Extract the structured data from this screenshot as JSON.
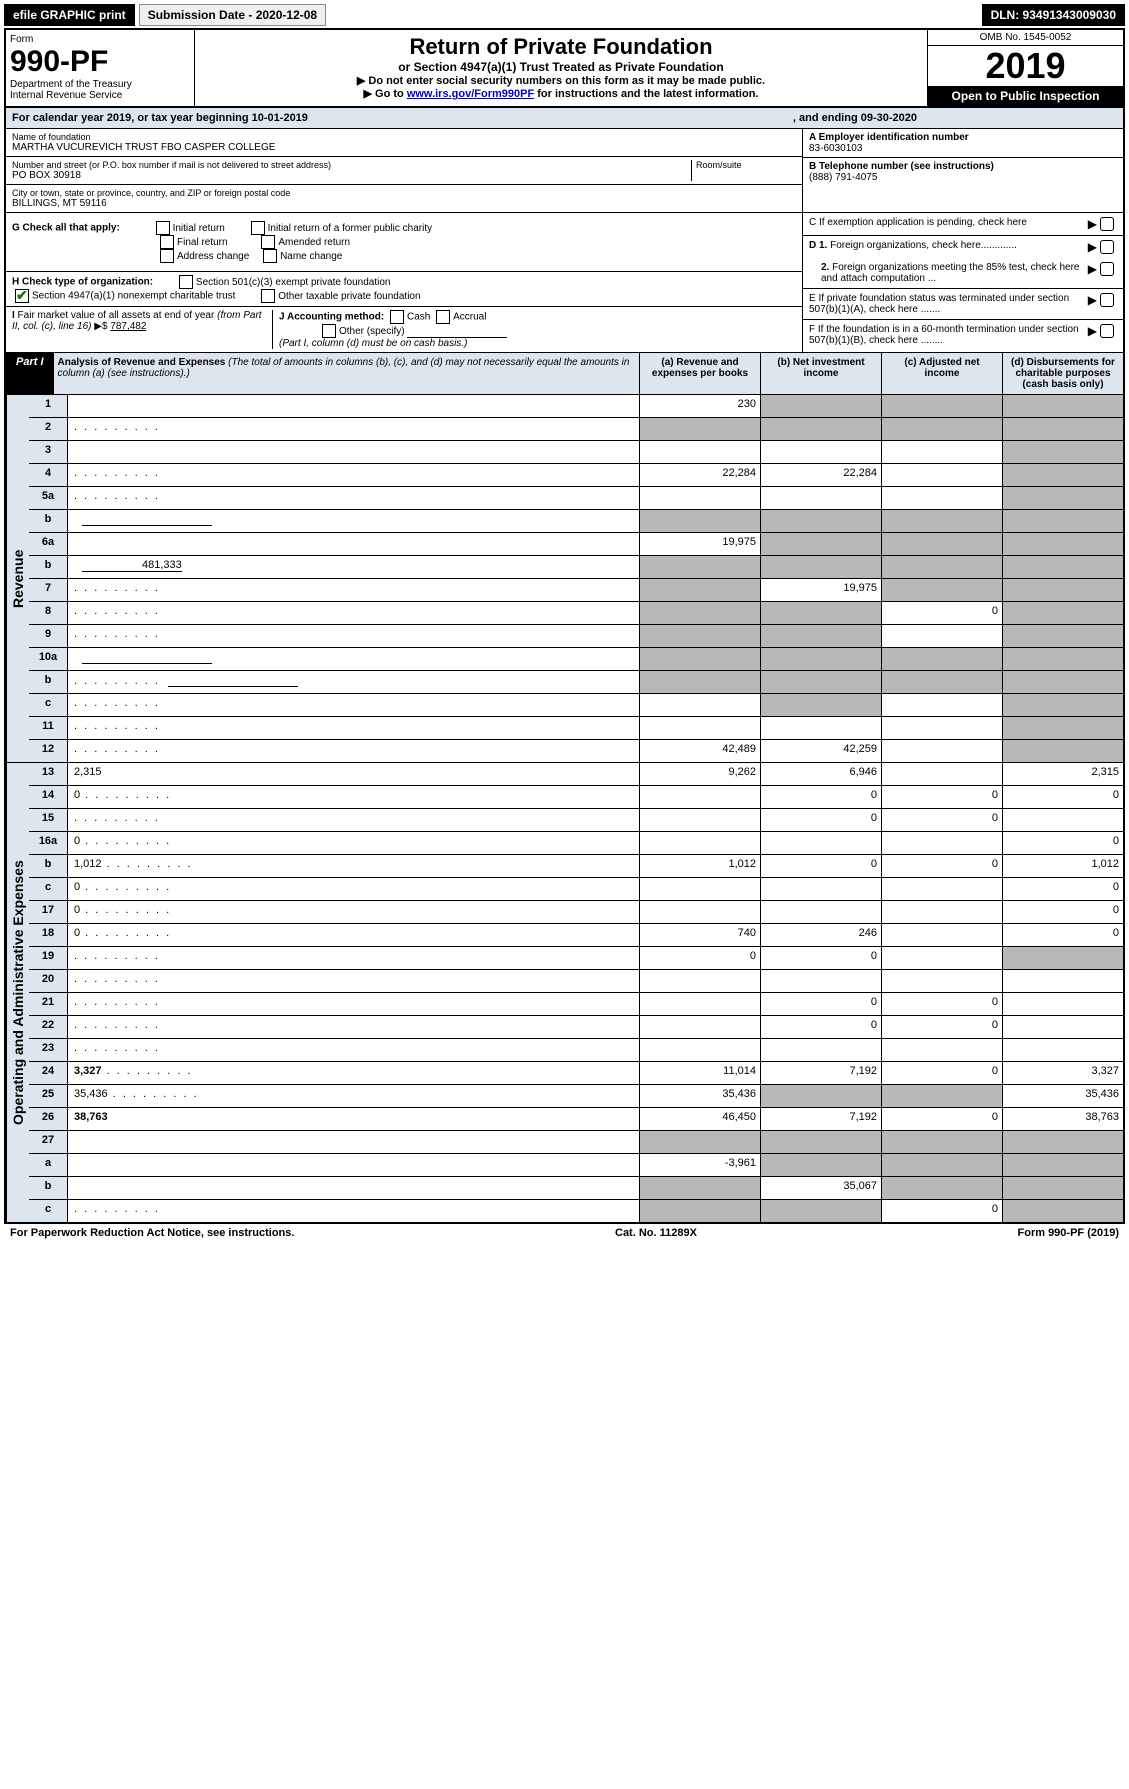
{
  "topbar": {
    "efile": "efile GRAPHIC print",
    "submission": "Submission Date - 2020-12-08",
    "dln": "DLN: 93491343009030"
  },
  "header": {
    "form_label": "Form",
    "form_number": "990-PF",
    "dept": "Department of the Treasury",
    "irs": "Internal Revenue Service",
    "title": "Return of Private Foundation",
    "subtitle": "or Section 4947(a)(1) Trust Treated as Private Foundation",
    "instr1": "▶ Do not enter social security numbers on this form as it may be made public.",
    "instr2_pre": "▶ Go to ",
    "instr2_link": "www.irs.gov/Form990PF",
    "instr2_post": " for instructions and the latest information.",
    "omb": "OMB No. 1545-0052",
    "year": "2019",
    "open": "Open to Public Inspection"
  },
  "calendar": {
    "text": "For calendar year 2019, or tax year beginning 10-01-2019",
    "ending": ", and ending 09-30-2020"
  },
  "entity": {
    "name_label": "Name of foundation",
    "name": "MARTHA VUCUREVICH TRUST FBO CASPER COLLEGE",
    "addr_label": "Number and street (or P.O. box number if mail is not delivered to street address)",
    "room_label": "Room/suite",
    "addr": "PO BOX 30918",
    "city_label": "City or town, state or province, country, and ZIP or foreign postal code",
    "city": "BILLINGS, MT  59116",
    "ein_label": "A Employer identification number",
    "ein": "83-6030103",
    "phone_label": "B Telephone number (see instructions)",
    "phone": "(888) 791-4075",
    "c_label": "C If exemption application is pending, check here",
    "d1": "D 1. Foreign organizations, check here.............",
    "d2": "2. Foreign organizations meeting the 85% test, check here and attach computation ...",
    "e_label": "E  If private foundation status was terminated under section 507(b)(1)(A), check here .......",
    "f_label": "F  If the foundation is in a 60-month termination under section 507(b)(1)(B), check here ........"
  },
  "checks": {
    "g_label": "G Check all that apply:",
    "initial": "Initial return",
    "initial_former": "Initial return of a former public charity",
    "final": "Final return",
    "amended": "Amended return",
    "addr_change": "Address change",
    "name_change": "Name change",
    "h_label": "H Check type of organization:",
    "h1": "Section 501(c)(3) exempt private foundation",
    "h2": "Section 4947(a)(1) nonexempt charitable trust",
    "h3": "Other taxable private foundation",
    "i_label": "I Fair market value of all assets at end of year (from Part II, col. (c), line 16) ▶$",
    "i_value": "787,482",
    "j_label": "J Accounting method:",
    "j_cash": "Cash",
    "j_accrual": "Accrual",
    "j_other": "Other (specify)",
    "j_note": "(Part I, column (d) must be on cash basis.)"
  },
  "part1": {
    "label": "Part I",
    "title": "Analysis of Revenue and Expenses",
    "title_note": " (The total of amounts in columns (b), (c), and (d) may not necessarily equal the amounts in column (a) (see instructions).)",
    "col_a": "(a)   Revenue and expenses per books",
    "col_b": "(b)  Net investment income",
    "col_c": "(c)  Adjusted net income",
    "col_d": "(d)  Disbursements for charitable purposes (cash basis only)"
  },
  "side_labels": {
    "revenue": "Revenue",
    "expenses": "Operating and Administrative Expenses"
  },
  "rows": [
    {
      "n": "1",
      "d": "",
      "a": "230",
      "b": "",
      "c": "",
      "sb": true,
      "sc": true,
      "sd": true
    },
    {
      "n": "2",
      "d": "",
      "dots": true,
      "a": "",
      "b": "",
      "c": "",
      "sa": true,
      "sb": true,
      "sc": true,
      "sd": true,
      "bold_not": true
    },
    {
      "n": "3",
      "d": "",
      "a": "",
      "b": "",
      "c": "",
      "sd": true
    },
    {
      "n": "4",
      "d": "",
      "dots": true,
      "a": "22,284",
      "b": "22,284",
      "c": "",
      "sd": true
    },
    {
      "n": "5a",
      "d": "",
      "dots": true,
      "a": "",
      "b": "",
      "c": "",
      "sd": true
    },
    {
      "n": "b",
      "d": "",
      "blank": true,
      "a": "",
      "b": "",
      "c": "",
      "sa": true,
      "sb": true,
      "sc": true,
      "sd": true
    },
    {
      "n": "6a",
      "d": "",
      "a": "19,975",
      "b": "",
      "c": "",
      "sb": true,
      "sc": true,
      "sd": true
    },
    {
      "n": "b",
      "d": "",
      "blank_val": "481,333",
      "a": "",
      "b": "",
      "c": "",
      "sa": true,
      "sb": true,
      "sc": true,
      "sd": true
    },
    {
      "n": "7",
      "d": "",
      "dots": true,
      "a": "",
      "b": "19,975",
      "c": "",
      "sa": true,
      "sc": true,
      "sd": true
    },
    {
      "n": "8",
      "d": "",
      "dots": true,
      "a": "",
      "b": "",
      "c": "0",
      "sa": true,
      "sb": true,
      "sd": true
    },
    {
      "n": "9",
      "d": "",
      "dots": true,
      "a": "",
      "b": "",
      "c": "",
      "sa": true,
      "sb": true,
      "sd": true
    },
    {
      "n": "10a",
      "d": "",
      "blank": true,
      "a": "",
      "b": "",
      "c": "",
      "sa": true,
      "sb": true,
      "sc": true,
      "sd": true
    },
    {
      "n": "b",
      "d": "",
      "dots": true,
      "blank": true,
      "a": "",
      "b": "",
      "c": "",
      "sa": true,
      "sb": true,
      "sc": true,
      "sd": true
    },
    {
      "n": "c",
      "d": "",
      "dots": true,
      "a": "",
      "b": "",
      "c": "",
      "sb": true,
      "sd": true
    },
    {
      "n": "11",
      "d": "",
      "dots": true,
      "a": "",
      "b": "",
      "c": "",
      "sd": true
    },
    {
      "n": "12",
      "d": "",
      "dots": true,
      "bold": true,
      "a": "42,489",
      "b": "42,259",
      "c": "",
      "sd": true
    }
  ],
  "exp_rows": [
    {
      "n": "13",
      "d": "2,315",
      "a": "9,262",
      "b": "6,946",
      "c": ""
    },
    {
      "n": "14",
      "d": "0",
      "dots": true,
      "a": "",
      "b": "0",
      "c": "0"
    },
    {
      "n": "15",
      "d": "",
      "dots": true,
      "a": "",
      "b": "0",
      "c": "0"
    },
    {
      "n": "16a",
      "d": "0",
      "dots": true,
      "a": "",
      "b": "",
      "c": ""
    },
    {
      "n": "b",
      "d": "1,012",
      "dots": true,
      "a": "1,012",
      "b": "0",
      "c": "0"
    },
    {
      "n": "c",
      "d": "0",
      "dots": true,
      "a": "",
      "b": "",
      "c": ""
    },
    {
      "n": "17",
      "d": "0",
      "dots": true,
      "a": "",
      "b": "",
      "c": ""
    },
    {
      "n": "18",
      "d": "0",
      "dots": true,
      "a": "740",
      "b": "246",
      "c": ""
    },
    {
      "n": "19",
      "d": "",
      "dots": true,
      "a": "0",
      "b": "0",
      "c": "",
      "sd": true
    },
    {
      "n": "20",
      "d": "",
      "dots": true,
      "a": "",
      "b": "",
      "c": ""
    },
    {
      "n": "21",
      "d": "",
      "dots": true,
      "a": "",
      "b": "0",
      "c": "0"
    },
    {
      "n": "22",
      "d": "",
      "dots": true,
      "a": "",
      "b": "0",
      "c": "0"
    },
    {
      "n": "23",
      "d": "",
      "dots": true,
      "a": "",
      "b": "",
      "c": ""
    },
    {
      "n": "24",
      "d": "3,327",
      "dots": true,
      "bold": true,
      "a": "11,014",
      "b": "7,192",
      "c": "0"
    },
    {
      "n": "25",
      "d": "35,436",
      "dots": true,
      "a": "35,436",
      "b": "",
      "c": "",
      "sb": true,
      "sc": true
    },
    {
      "n": "26",
      "d": "38,763",
      "bold": true,
      "a": "46,450",
      "b": "7,192",
      "c": "0"
    },
    {
      "n": "27",
      "d": "",
      "a": "",
      "b": "",
      "c": "",
      "sa": true,
      "sb": true,
      "sc": true,
      "sd": true
    },
    {
      "n": "a",
      "d": "",
      "bold": true,
      "a": "-3,961",
      "b": "",
      "c": "",
      "sb": true,
      "sc": true,
      "sd": true
    },
    {
      "n": "b",
      "d": "",
      "bold": true,
      "a": "",
      "b": "35,067",
      "c": "",
      "sa": true,
      "sc": true,
      "sd": true
    },
    {
      "n": "c",
      "d": "",
      "bold": true,
      "dots": true,
      "a": "",
      "b": "",
      "c": "0",
      "sa": true,
      "sb": true,
      "sd": true
    }
  ],
  "footer": {
    "left": "For Paperwork Reduction Act Notice, see instructions.",
    "center": "Cat. No. 11289X",
    "right": "Form 990-PF (2019)"
  }
}
